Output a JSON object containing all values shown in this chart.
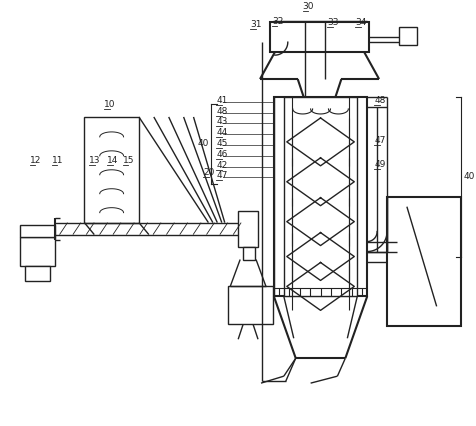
{
  "bg_color": "#ffffff",
  "line_color": "#222222",
  "label_color": "#222222",
  "fig_w": 4.77,
  "fig_h": 4.26,
  "dpi": 100
}
